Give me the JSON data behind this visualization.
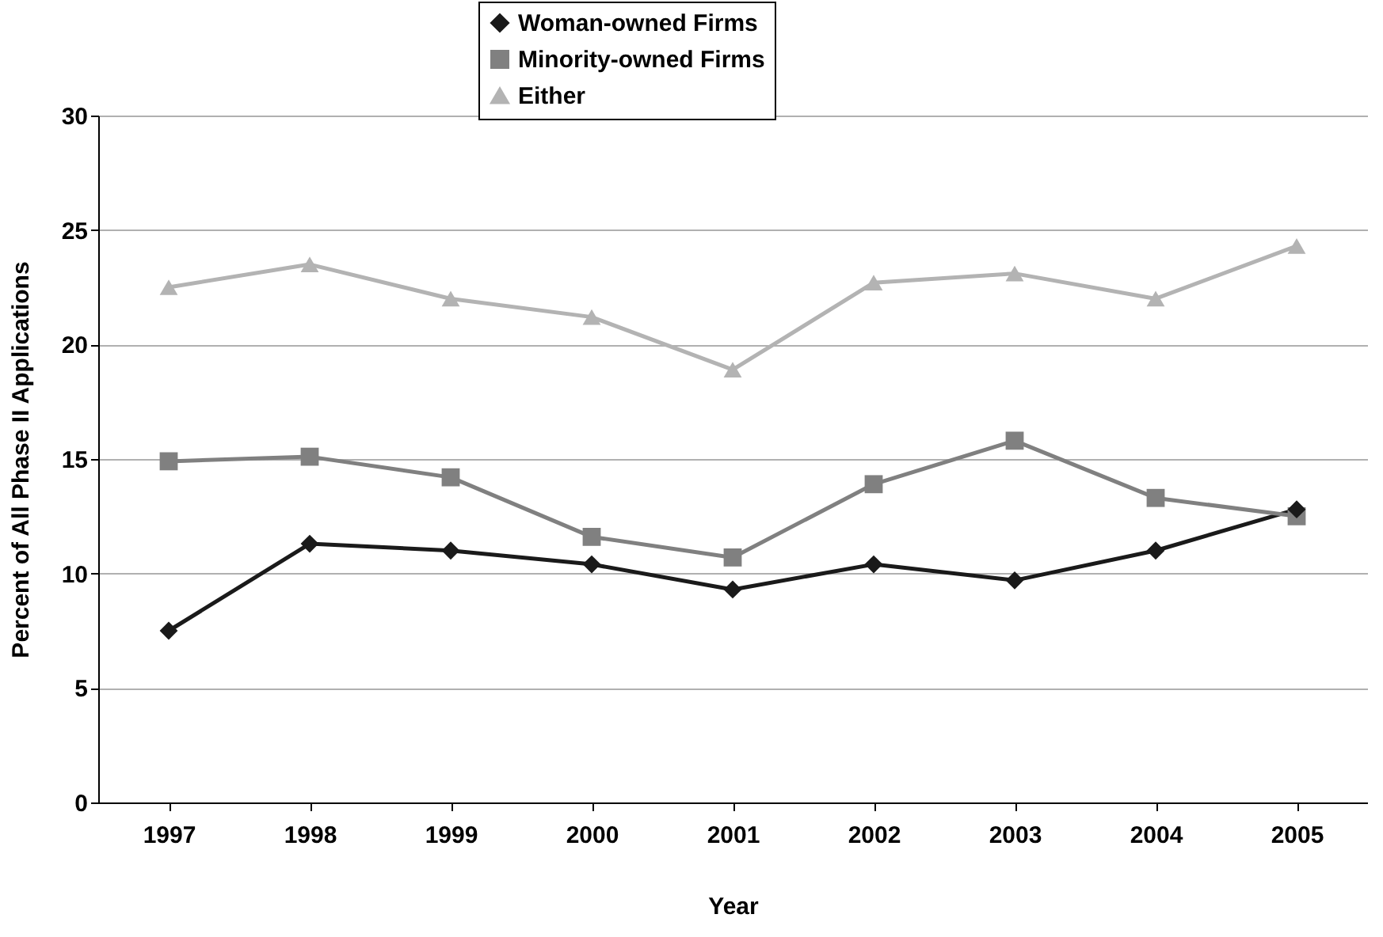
{
  "chart_data": {
    "type": "line",
    "xlabel": "Year",
    "ylabel": "Percent of All Phase II Applications",
    "categories": [
      "1997",
      "1998",
      "1999",
      "2000",
      "2001",
      "2002",
      "2003",
      "2004",
      "2005"
    ],
    "series": [
      {
        "name": "Woman-owned Firms",
        "color": "#1a1a1a",
        "marker": "diamond",
        "values": [
          7.5,
          11.3,
          11.0,
          10.4,
          9.3,
          10.4,
          9.7,
          11.0,
          12.8
        ]
      },
      {
        "name": "Minority-owned Firms",
        "color": "#808080",
        "marker": "square",
        "values": [
          14.9,
          15.1,
          14.2,
          11.6,
          10.7,
          13.9,
          15.8,
          13.3,
          12.5
        ]
      },
      {
        "name": "Either",
        "color": "#b3b3b3",
        "marker": "triangle",
        "values": [
          22.5,
          23.5,
          22.0,
          21.2,
          18.9,
          22.7,
          23.1,
          22.0,
          24.3
        ]
      }
    ],
    "ylim": [
      0,
      30
    ],
    "yticks": [
      0,
      5,
      10,
      15,
      20,
      25,
      30
    ],
    "grid": "y",
    "legend": "top",
    "line_style": "solid"
  }
}
